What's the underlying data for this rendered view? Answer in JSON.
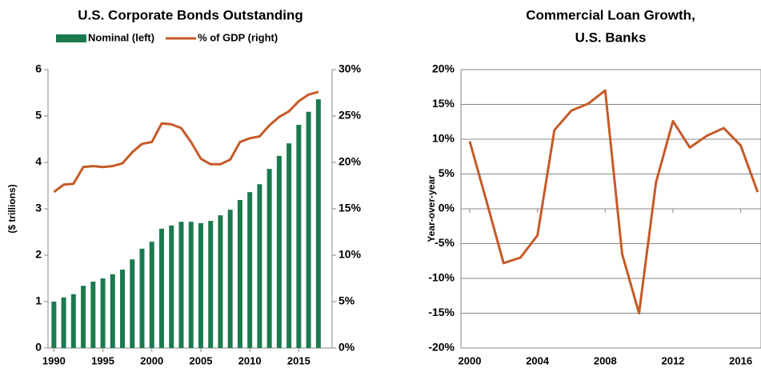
{
  "chart_data": [
    {
      "type": "combo",
      "title": "U.S. Corporate Bonds Outstanding",
      "ylabel": "($ trillions)",
      "x": [
        1990,
        1991,
        1992,
        1993,
        1994,
        1995,
        1996,
        1997,
        1998,
        1999,
        2000,
        2001,
        2002,
        2003,
        2004,
        2005,
        2006,
        2007,
        2008,
        2009,
        2010,
        2011,
        2012,
        2013,
        2014,
        2015,
        2016,
        2017
      ],
      "series": [
        {
          "name": "Nominal (left)",
          "color": "#1a7a4e",
          "kind": "bar",
          "values": [
            1.0,
            1.09,
            1.16,
            1.34,
            1.43,
            1.5,
            1.59,
            1.69,
            1.91,
            2.14,
            2.29,
            2.57,
            2.64,
            2.72,
            2.72,
            2.69,
            2.74,
            2.86,
            2.98,
            3.19,
            3.36,
            3.53,
            3.86,
            4.14,
            4.41,
            4.81,
            5.09,
            5.36
          ]
        },
        {
          "name": "% of GDP (right)",
          "color": "#c55a28",
          "kind": "line",
          "axis": "y2",
          "values": [
            16.8,
            17.6,
            17.7,
            19.5,
            19.6,
            19.5,
            19.6,
            19.9,
            21.1,
            22.0,
            22.2,
            24.2,
            24.1,
            23.7,
            22.2,
            20.4,
            19.8,
            19.8,
            20.3,
            22.2,
            22.6,
            22.8,
            24.0,
            24.9,
            25.5,
            26.6,
            27.3,
            27.6
          ]
        }
      ],
      "xlim": [
        1989.4,
        2018.4
      ],
      "xticks": [
        1990,
        1995,
        2000,
        2005,
        2010,
        2015
      ],
      "ylim": [
        0,
        6
      ],
      "yticks": [
        0,
        1,
        2,
        3,
        4,
        5,
        6
      ],
      "y2lim": [
        0,
        30
      ],
      "y2ticks": [
        {
          "value": 0,
          "label": "0%"
        },
        {
          "value": 5,
          "label": "5%"
        },
        {
          "value": 10,
          "label": "10%"
        },
        {
          "value": 15,
          "label": "15%"
        },
        {
          "value": 20,
          "label": "20%"
        },
        {
          "value": 25,
          "label": "25%"
        },
        {
          "value": 30,
          "label": "30%"
        }
      ],
      "grid": false
    },
    {
      "type": "line",
      "title": [
        "Commercial Loan Growth,",
        "U.S. Banks"
      ],
      "ylabel": "Year-over-year",
      "x": [
        2000,
        2001,
        2002,
        2003,
        2004,
        2005,
        2006,
        2007,
        2008,
        2009,
        2010,
        2011,
        2012,
        2013,
        2014,
        2015,
        2016,
        2017
      ],
      "series": [
        {
          "color": "#c55a28",
          "values": [
            9.7,
            1.0,
            -7.8,
            -7.0,
            -3.8,
            11.3,
            14.1,
            15.1,
            17.0,
            -6.5,
            -15.0,
            3.8,
            12.6,
            8.8,
            10.5,
            11.6,
            9.1,
            2.4
          ]
        }
      ],
      "xlim": [
        1999.48,
        2017.2
      ],
      "xticks": [
        2000,
        2004,
        2008,
        2012,
        2016
      ],
      "ylim": [
        -20,
        20
      ],
      "yticks": [
        {
          "value": -20,
          "label": "-20%"
        },
        {
          "value": -15,
          "label": "-15%"
        },
        {
          "value": -10,
          "label": "-10%"
        },
        {
          "value": -5,
          "label": "-5%"
        },
        {
          "value": 0,
          "label": "0%"
        },
        {
          "value": 5,
          "label": "5%"
        },
        {
          "value": 10,
          "label": "10%"
        },
        {
          "value": 15,
          "label": "15%"
        },
        {
          "value": 20,
          "label": "20%"
        }
      ],
      "grid": true
    }
  ]
}
